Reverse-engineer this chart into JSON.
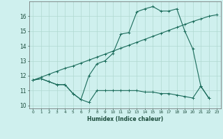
{
  "xlabel": "Humidex (Indice chaleur)",
  "background_color": "#cff0ee",
  "grid_color": "#b0d8d0",
  "line_color": "#1a6b5a",
  "xlim": [
    -0.5,
    23.5
  ],
  "ylim": [
    9.8,
    17.0
  ],
  "xticks": [
    0,
    1,
    2,
    3,
    4,
    5,
    6,
    7,
    8,
    9,
    10,
    11,
    12,
    13,
    14,
    15,
    16,
    17,
    18,
    19,
    20,
    21,
    22,
    23
  ],
  "yticks": [
    10,
    11,
    12,
    13,
    14,
    15,
    16
  ],
  "line1_x": [
    0,
    1,
    2,
    3,
    4,
    5,
    6,
    7,
    8,
    9,
    10,
    11,
    12,
    13,
    14,
    15,
    16,
    17,
    18,
    19,
    20,
    21,
    22
  ],
  "line1_y": [
    11.7,
    11.8,
    11.6,
    11.4,
    11.4,
    10.8,
    10.4,
    10.2,
    11.0,
    11.0,
    11.0,
    11.0,
    11.0,
    11.0,
    10.9,
    10.9,
    10.8,
    10.8,
    10.7,
    10.6,
    10.5,
    11.3,
    10.5
  ],
  "line2_x": [
    0,
    1,
    2,
    3,
    4,
    5,
    6,
    7,
    8,
    9,
    10,
    11,
    12,
    13,
    14,
    15,
    16,
    17,
    18,
    19,
    20,
    21,
    22
  ],
  "line2_y": [
    11.7,
    11.8,
    11.6,
    11.4,
    11.4,
    10.8,
    10.4,
    12.0,
    12.8,
    13.0,
    13.5,
    14.8,
    14.9,
    16.3,
    16.5,
    16.65,
    16.35,
    16.35,
    16.5,
    15.0,
    13.8,
    11.3,
    10.5
  ],
  "line3_x": [
    0,
    1,
    2,
    3,
    4,
    5,
    6,
    7,
    8,
    9,
    10,
    11,
    12,
    13,
    14,
    15,
    16,
    17,
    18,
    19,
    20,
    21,
    22,
    23
  ],
  "line3_y": [
    11.7,
    11.9,
    12.1,
    12.3,
    12.5,
    12.65,
    12.85,
    13.05,
    13.25,
    13.45,
    13.65,
    13.85,
    14.05,
    14.25,
    14.45,
    14.65,
    14.85,
    15.05,
    15.25,
    15.45,
    15.65,
    15.82,
    16.0,
    16.1
  ],
  "figsize": [
    3.2,
    2.0
  ],
  "dpi": 100
}
